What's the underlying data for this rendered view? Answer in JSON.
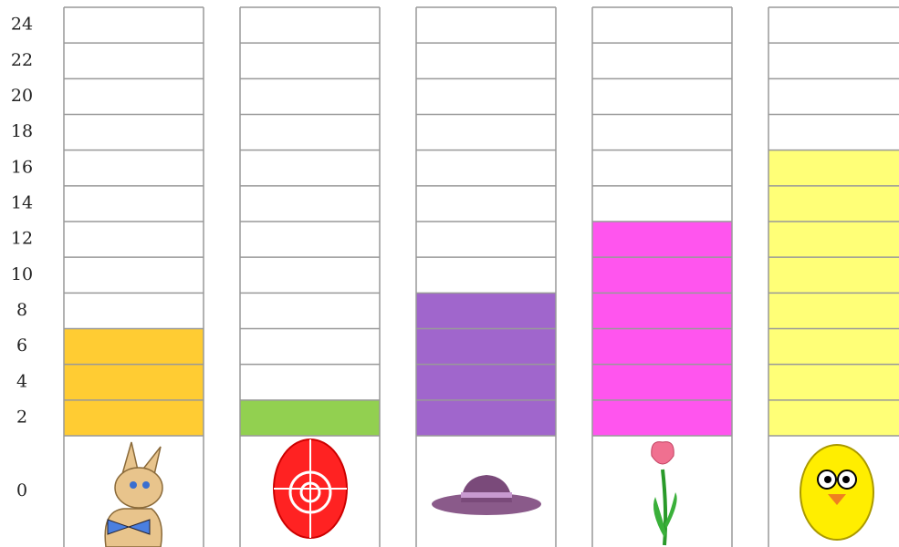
{
  "chart_data": {
    "type": "bar",
    "categories": [
      null,
      null,
      null,
      null,
      null
    ],
    "values": [
      6,
      2,
      8,
      12,
      16
    ],
    "colors": [
      "#ffcc33",
      "#92d050",
      "#a066cc",
      "#ff55ee",
      "#ffff77"
    ],
    "ylim": [
      0,
      24
    ],
    "yticks": [
      0,
      2,
      4,
      6,
      8,
      10,
      12,
      14,
      16,
      18,
      20,
      22,
      24
    ],
    "grid": true
  }
}
